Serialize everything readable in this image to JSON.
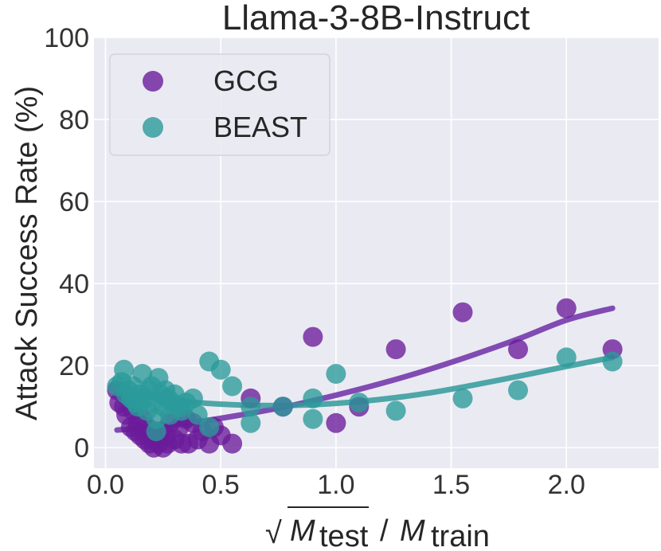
{
  "chart_data": {
    "type": "scatter",
    "title": "Llama-3-8B-Instruct",
    "xlabel": {
      "radical": "√",
      "numerator_var": "M",
      "numerator_sub": "test",
      "separator": "/",
      "denominator_var": "M",
      "denominator_sub": "train"
    },
    "ylabel": "Attack Success Rate (%)",
    "xlim": [
      -0.05,
      2.4
    ],
    "ylim": [
      -5,
      100
    ],
    "xticks": [
      0.0,
      0.5,
      1.0,
      1.5,
      2.0
    ],
    "xtick_labels": [
      "0.0",
      "0.5",
      "1.0",
      "1.5",
      "2.0"
    ],
    "yticks": [
      0,
      20,
      40,
      60,
      80,
      100
    ],
    "ytick_labels": [
      "0",
      "20",
      "40",
      "60",
      "80",
      "100"
    ],
    "grid": true,
    "legend_position": "top-left",
    "series": [
      {
        "name": "GCG",
        "color": "#6a1b9a",
        "fit_color": "#6f2fa8",
        "points": [
          [
            0.05,
            14
          ],
          [
            0.06,
            11
          ],
          [
            0.08,
            10
          ],
          [
            0.09,
            8
          ],
          [
            0.1,
            12
          ],
          [
            0.11,
            5
          ],
          [
            0.12,
            9
          ],
          [
            0.13,
            4
          ],
          [
            0.14,
            6
          ],
          [
            0.15,
            3
          ],
          [
            0.16,
            7
          ],
          [
            0.17,
            2
          ],
          [
            0.18,
            5
          ],
          [
            0.19,
            1
          ],
          [
            0.2,
            3
          ],
          [
            0.21,
            0
          ],
          [
            0.22,
            2
          ],
          [
            0.23,
            1
          ],
          [
            0.24,
            4
          ],
          [
            0.25,
            0
          ],
          [
            0.26,
            3
          ],
          [
            0.27,
            1
          ],
          [
            0.28,
            6
          ],
          [
            0.3,
            2
          ],
          [
            0.32,
            5
          ],
          [
            0.33,
            1
          ],
          [
            0.35,
            7
          ],
          [
            0.36,
            1
          ],
          [
            0.38,
            6
          ],
          [
            0.4,
            2
          ],
          [
            0.42,
            4
          ],
          [
            0.45,
            1
          ],
          [
            0.47,
            5
          ],
          [
            0.5,
            3
          ],
          [
            0.55,
            1
          ],
          [
            0.63,
            12
          ],
          [
            0.77,
            10
          ],
          [
            0.9,
            27
          ],
          [
            1.0,
            6
          ],
          [
            1.1,
            10
          ],
          [
            1.26,
            24
          ],
          [
            1.55,
            33
          ],
          [
            1.79,
            24
          ],
          [
            2.0,
            34
          ],
          [
            2.2,
            24
          ]
        ],
        "fit": [
          [
            0.05,
            4.3
          ],
          [
            0.2,
            4.9
          ],
          [
            0.4,
            6.3
          ],
          [
            0.6,
            8.1
          ],
          [
            0.8,
            10.2
          ],
          [
            1.0,
            12.8
          ],
          [
            1.2,
            15.7
          ],
          [
            1.4,
            19.0
          ],
          [
            1.6,
            22.7
          ],
          [
            1.8,
            26.7
          ],
          [
            2.0,
            31.1
          ],
          [
            2.2,
            34.0
          ]
        ]
      },
      {
        "name": "BEAST",
        "color": "#2a9a9a",
        "fit_color": "#319a9b",
        "points": [
          [
            0.05,
            15
          ],
          [
            0.07,
            16
          ],
          [
            0.08,
            19
          ],
          [
            0.09,
            13
          ],
          [
            0.1,
            14
          ],
          [
            0.11,
            12
          ],
          [
            0.12,
            15
          ],
          [
            0.13,
            11
          ],
          [
            0.14,
            10
          ],
          [
            0.15,
            13
          ],
          [
            0.16,
            18
          ],
          [
            0.17,
            12
          ],
          [
            0.18,
            9
          ],
          [
            0.19,
            14
          ],
          [
            0.2,
            15
          ],
          [
            0.21,
            11
          ],
          [
            0.22,
            7
          ],
          [
            0.23,
            17
          ],
          [
            0.24,
            13
          ],
          [
            0.25,
            10
          ],
          [
            0.26,
            14
          ],
          [
            0.27,
            12
          ],
          [
            0.28,
            8
          ],
          [
            0.29,
            11
          ],
          [
            0.3,
            13
          ],
          [
            0.32,
            10
          ],
          [
            0.33,
            9
          ],
          [
            0.35,
            11
          ],
          [
            0.38,
            12
          ],
          [
            0.4,
            8
          ],
          [
            0.22,
            4
          ],
          [
            0.45,
            21
          ],
          [
            0.5,
            19
          ],
          [
            0.55,
            15
          ],
          [
            0.45,
            5
          ],
          [
            0.63,
            6
          ],
          [
            0.63,
            10
          ],
          [
            0.77,
            10
          ],
          [
            0.9,
            12
          ],
          [
            0.9,
            7
          ],
          [
            1.0,
            18
          ],
          [
            1.1,
            11
          ],
          [
            1.26,
            9
          ],
          [
            1.55,
            12
          ],
          [
            1.79,
            14
          ],
          [
            2.0,
            22
          ],
          [
            2.2,
            21
          ]
        ],
        "fit": [
          [
            0.05,
            14.8
          ],
          [
            0.2,
            12.4
          ],
          [
            0.4,
            11.0
          ],
          [
            0.6,
            10.4
          ],
          [
            0.8,
            10.3
          ],
          [
            1.0,
            10.8
          ],
          [
            1.2,
            11.8
          ],
          [
            1.4,
            13.3
          ],
          [
            1.6,
            15.3
          ],
          [
            1.8,
            17.5
          ],
          [
            2.0,
            19.8
          ],
          [
            2.2,
            22.0
          ]
        ]
      }
    ]
  }
}
